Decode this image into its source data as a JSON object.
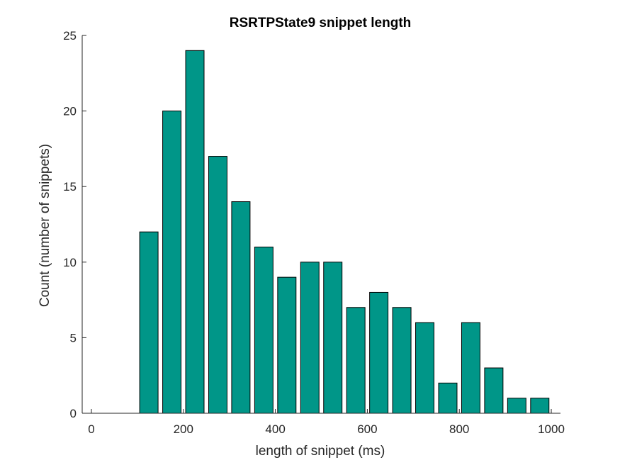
{
  "chart_data": {
    "type": "bar",
    "title": "RSRTPState9 snippet length",
    "xlabel": "length of snippet (ms)",
    "ylabel": "Count (number of snippets)",
    "bin_centers": [
      25,
      75,
      125,
      175,
      225,
      275,
      325,
      375,
      425,
      475,
      525,
      575,
      625,
      675,
      725,
      775,
      825,
      875,
      925,
      975
    ],
    "values": [
      0,
      0,
      12,
      20,
      24,
      17,
      14,
      11,
      9,
      10,
      10,
      7,
      8,
      7,
      6,
      2,
      6,
      3,
      1,
      1
    ],
    "bar_color": "#009688",
    "xlim": [
      -20,
      1020
    ],
    "ylim": [
      0,
      25
    ],
    "xticks": [
      0,
      200,
      400,
      600,
      800,
      1000
    ],
    "yticks": [
      0,
      5,
      10,
      15,
      20,
      25
    ],
    "grid": false
  }
}
